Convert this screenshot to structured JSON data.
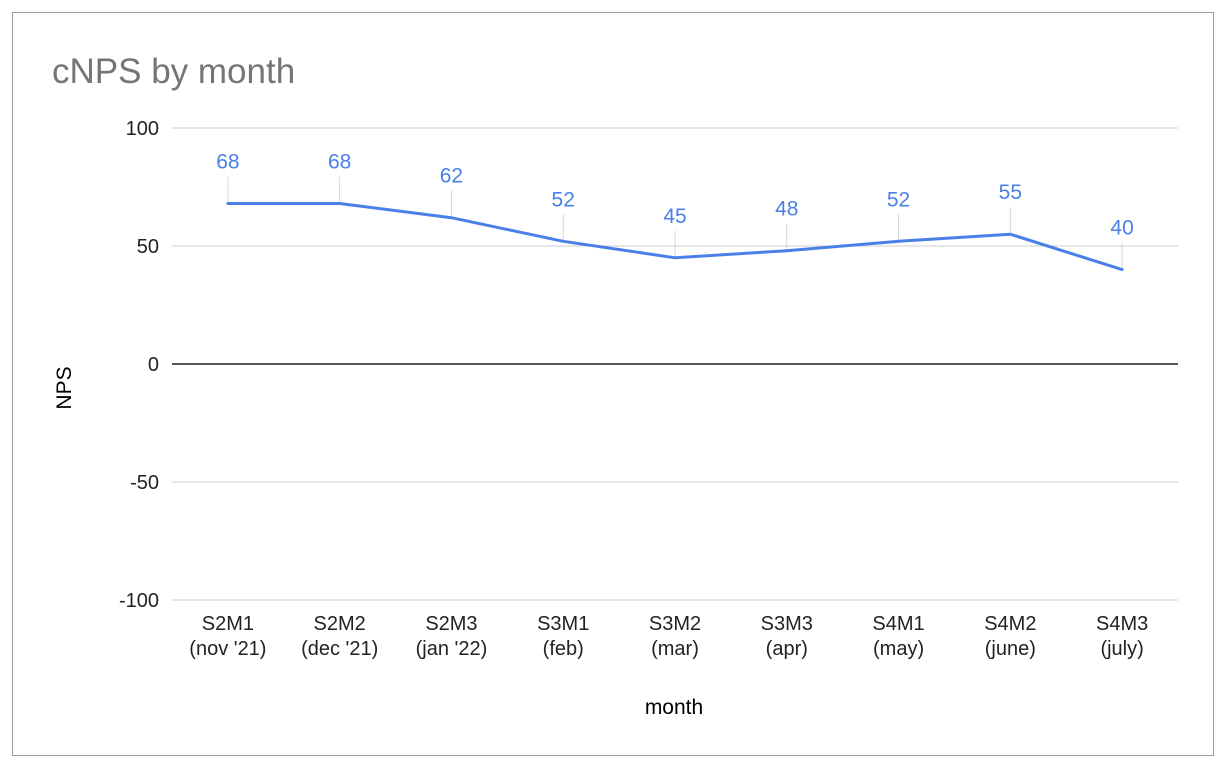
{
  "chart_data": {
    "type": "line",
    "title": "cNPS by month",
    "xlabel": "month",
    "ylabel": "NPS",
    "ylim": [
      -100,
      100
    ],
    "yticks": [
      100,
      50,
      0,
      -50,
      -100
    ],
    "grid": true,
    "categories": [
      [
        "S2M1",
        "(nov '21)"
      ],
      [
        "S2M2",
        "(dec '21)"
      ],
      [
        "S2M3",
        "(jan '22)"
      ],
      [
        "S3M1",
        "(feb)"
      ],
      [
        "S3M2",
        "(mar)"
      ],
      [
        "S3M3",
        "(apr)"
      ],
      [
        "S4M1",
        "(may)"
      ],
      [
        "S4M2",
        "(june)"
      ],
      [
        "S4M3",
        "(july)"
      ]
    ],
    "series": [
      {
        "values": [
          68,
          68,
          62,
          52,
          45,
          48,
          52,
          55,
          40
        ],
        "color": "#4a7fe8",
        "data_labels": true
      }
    ]
  },
  "colors": {
    "title": "#757575",
    "gridline": "#cccccc",
    "zero_line": "#222222",
    "leader_line": "#d6d6d6",
    "series": "#4a7fe8"
  }
}
